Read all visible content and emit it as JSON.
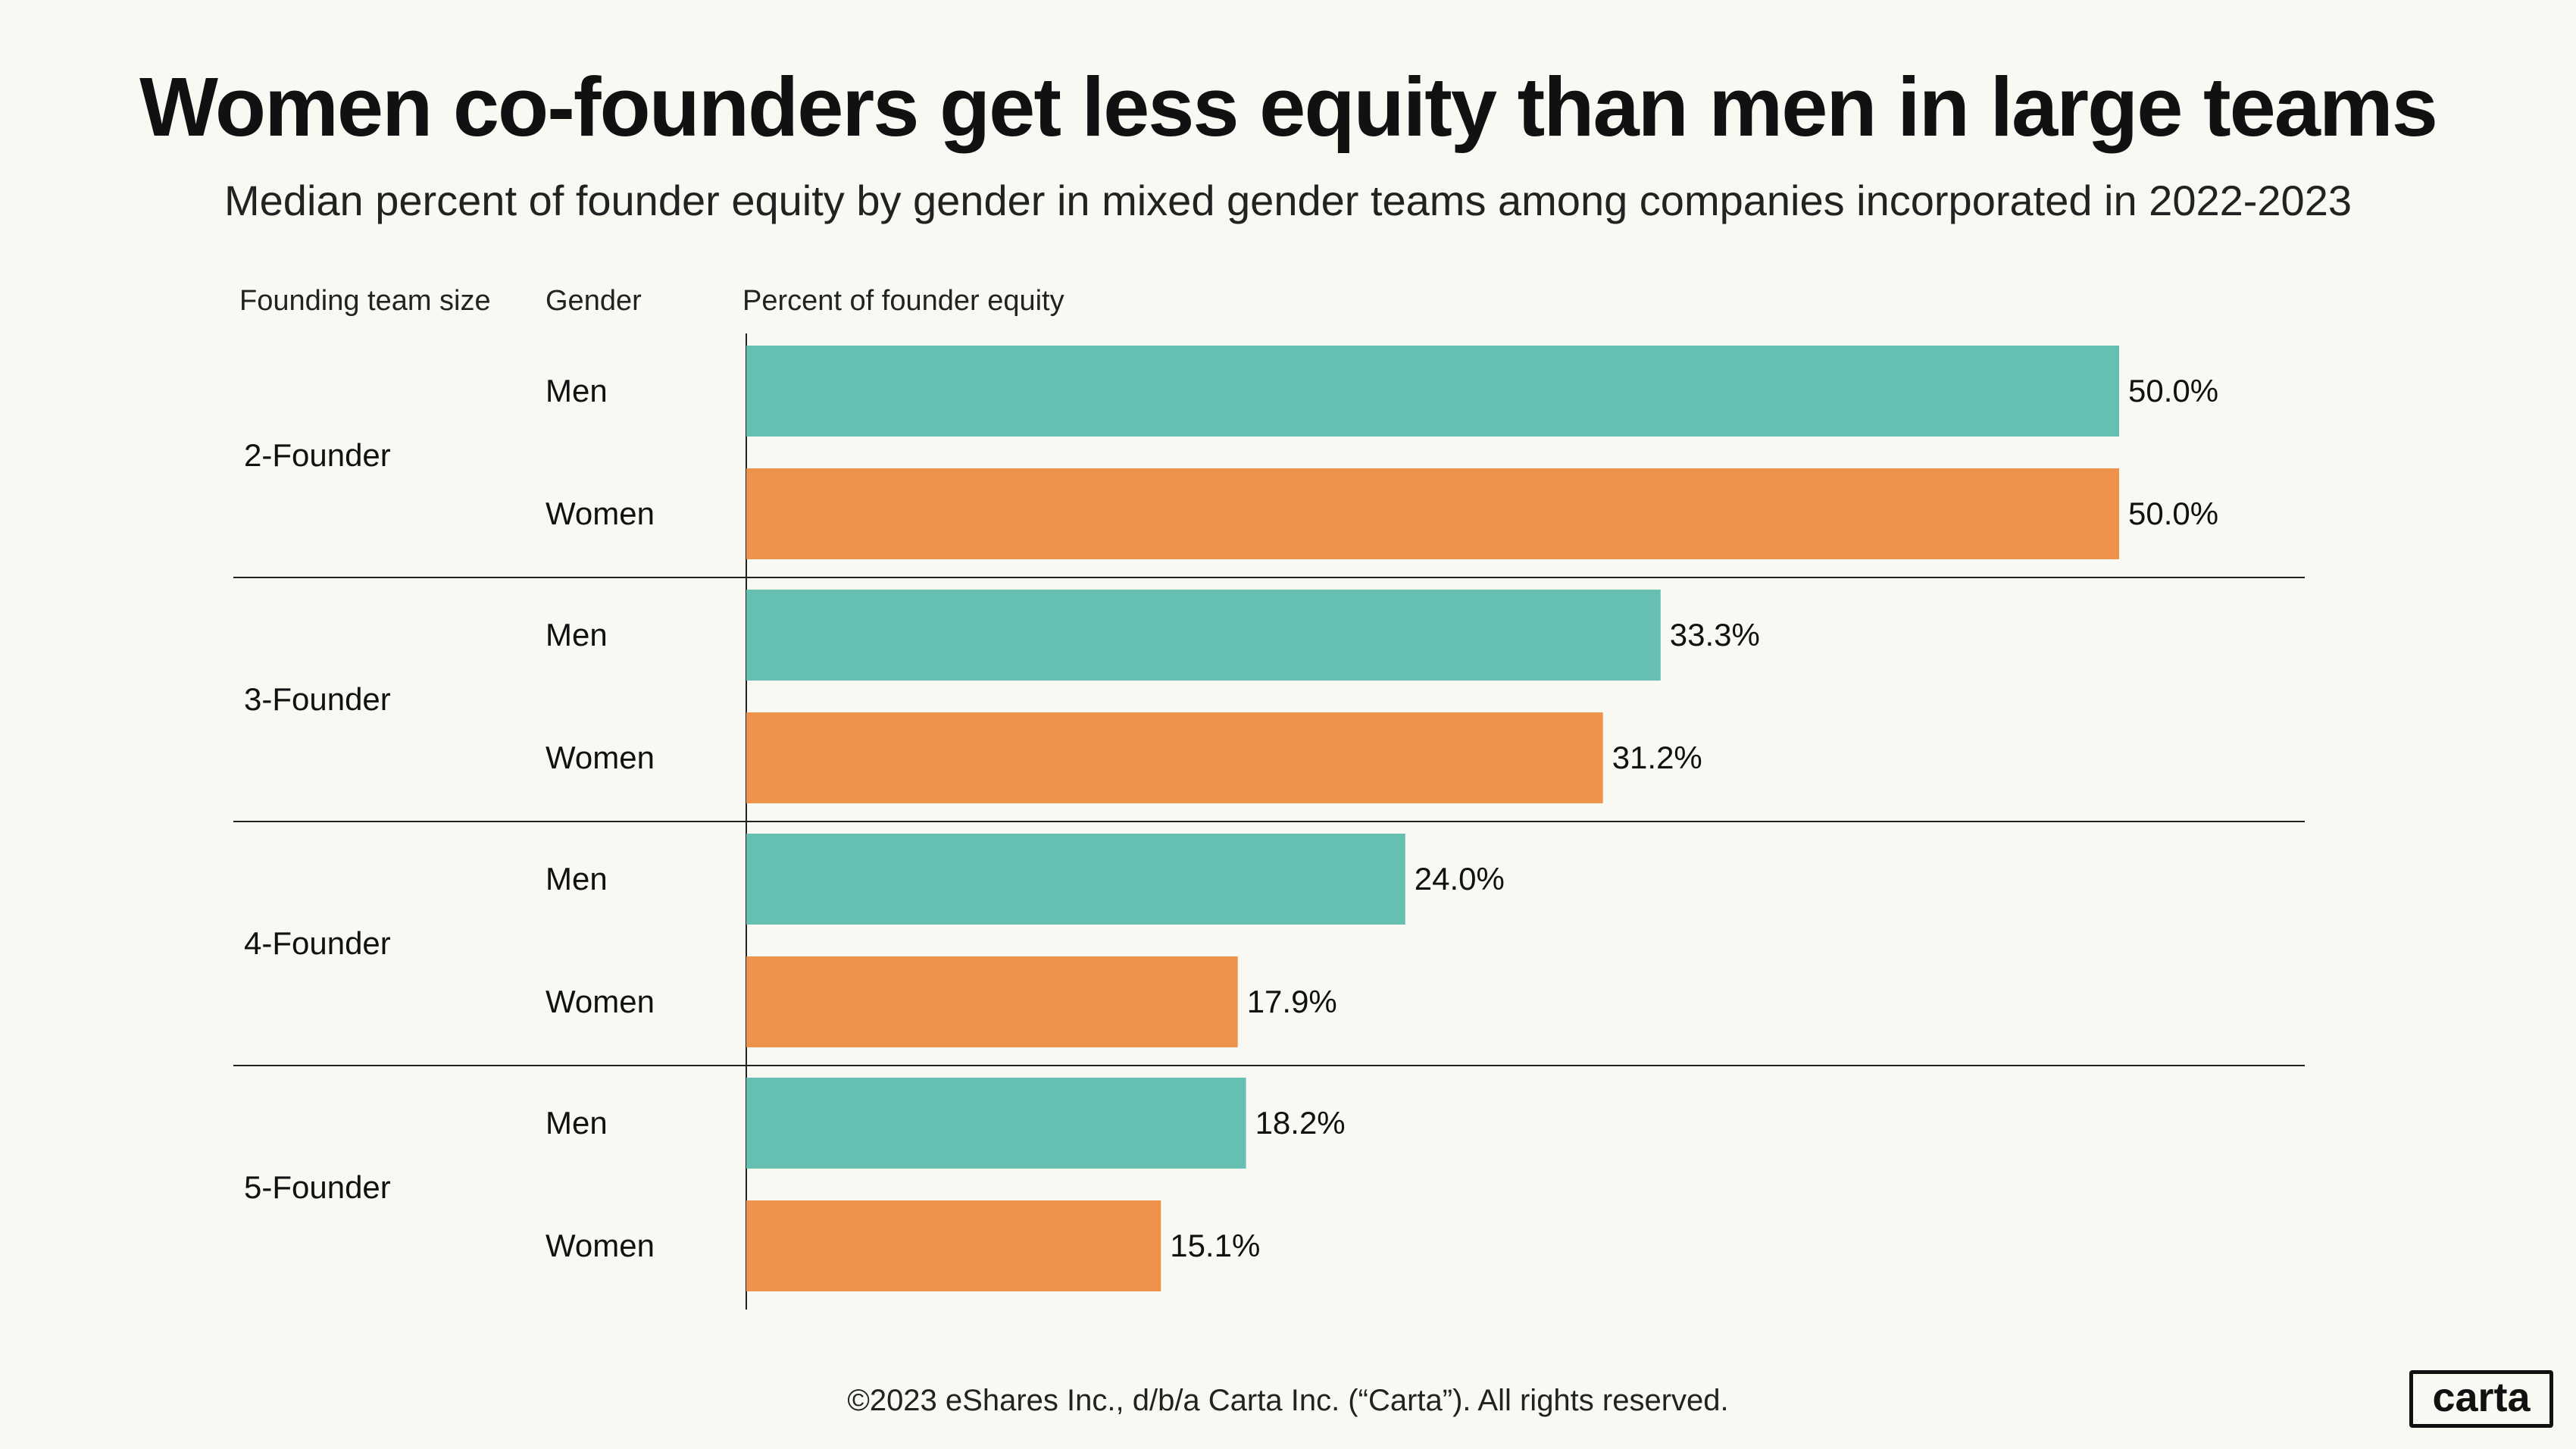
{
  "title": "Women co-founders get less equity than men in large teams",
  "subtitle": "Median percent of founder equity by gender in mixed gender teams among  companies incorporated in 2022-2023",
  "columns": {
    "team_size": "Founding team size",
    "gender": "Gender",
    "equity": "Percent of founder equity"
  },
  "footer": "©2023 eShares Inc., d/b/a Carta Inc. (“Carta”). All rights reserved.",
  "logo_text": "carta",
  "colors": {
    "men": "#66c0b1",
    "women": "#ee924c",
    "text": "#111111",
    "background": "#faf8f3"
  },
  "chart_data": {
    "type": "bar",
    "orientation": "horizontal",
    "xlim": [
      0,
      50
    ],
    "grid": false,
    "value_suffix": "%",
    "groups": [
      {
        "label": "2-Founder",
        "bars": [
          {
            "gender": "Men",
            "value": 50.0
          },
          {
            "gender": "Women",
            "value": 50.0
          }
        ]
      },
      {
        "label": "3-Founder",
        "bars": [
          {
            "gender": "Men",
            "value": 33.3
          },
          {
            "gender": "Women",
            "value": 31.2
          }
        ]
      },
      {
        "label": "4-Founder",
        "bars": [
          {
            "gender": "Men",
            "value": 24.0
          },
          {
            "gender": "Women",
            "value": 17.9
          }
        ]
      },
      {
        "label": "5-Founder",
        "bars": [
          {
            "gender": "Men",
            "value": 18.2
          },
          {
            "gender": "Women",
            "value": 15.1
          }
        ]
      }
    ]
  }
}
